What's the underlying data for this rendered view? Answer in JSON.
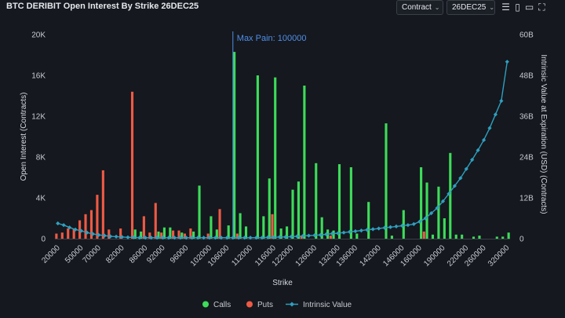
{
  "header": {
    "title": "BTC DERIBIT Open Interest By Strike 26DEC25",
    "metric_select": "Contract",
    "expiry_select": "26DEC25",
    "icons": [
      "menu-icon",
      "book-icon",
      "expand-icon"
    ]
  },
  "colors": {
    "calls": "#3ddc5a",
    "puts": "#ee5a45",
    "intrinsic": "#2f9fbf",
    "maxpain": "#4f8fe8",
    "background": "#15181e"
  },
  "chart_data": {
    "type": "bar",
    "xlabel": "Strike",
    "ylabel": "Open Interest (Contracts)",
    "y2label": "Intrinsic Value at Expiration (USD) (Contracts)",
    "ylim": [
      0,
      20000
    ],
    "y2lim": [
      0,
      60
    ],
    "yticks": [
      "0",
      "4K",
      "8K",
      "12K",
      "16K",
      "20K"
    ],
    "y2ticks": [
      "0",
      "12B",
      "24B",
      "36B",
      "48B",
      "60B"
    ],
    "xtick_labels": [
      "20000",
      "50000",
      "70000",
      "82000",
      "86000",
      "92000",
      "96000",
      "102000",
      "106000",
      "112000",
      "116000",
      "122000",
      "126000",
      "132000",
      "136000",
      "142000",
      "146000",
      "160000",
      "190000",
      "220000",
      "260000",
      "320000"
    ],
    "annotation": "Max Pain: 100000",
    "max_pain_index": 30,
    "legend": [
      "Calls",
      "Puts",
      "Intrinsic Value"
    ],
    "legend_position": "bottom",
    "grid": false,
    "series": [
      {
        "name": "Calls",
        "values": [
          0,
          0,
          0,
          0,
          0,
          0,
          0,
          0,
          0,
          0,
          0,
          0,
          0,
          900,
          700,
          0,
          0,
          700,
          1100,
          1100,
          0,
          600,
          0,
          700,
          5200,
          0,
          2200,
          900,
          0,
          1300,
          18300,
          2500,
          1200,
          0,
          16000,
          2200,
          5900,
          15800,
          1000,
          1200,
          4800,
          5600,
          15000,
          0,
          7400,
          2100,
          900,
          800,
          7300,
          0,
          7000,
          500,
          0,
          3600,
          0,
          0,
          11300,
          300,
          0,
          2800,
          0,
          0,
          7000,
          5500,
          400,
          5100,
          2000,
          8400,
          400,
          400,
          0,
          200,
          300,
          0,
          0,
          200,
          200,
          600
        ]
      },
      {
        "name": "Puts",
        "values": [
          500,
          600,
          1000,
          1000,
          1800,
          2400,
          2800,
          4300,
          6700,
          900,
          0,
          1000,
          0,
          14400,
          0,
          2200,
          600,
          3500,
          600,
          0,
          800,
          800,
          500,
          1000,
          0,
          0,
          500,
          0,
          2900,
          0,
          0,
          500,
          0,
          0,
          0,
          0,
          0,
          2400,
          0,
          0,
          0,
          0,
          300,
          0,
          0,
          0,
          0,
          300,
          0,
          0,
          0,
          0,
          0,
          0,
          0,
          0,
          0,
          0,
          0,
          0,
          0,
          0,
          0,
          700,
          0,
          0,
          0,
          0,
          0,
          0,
          0,
          0,
          0,
          0,
          0,
          0,
          0,
          0
        ]
      },
      {
        "name": "Intrinsic Value",
        "values": [
          4.5,
          4.0,
          3.3,
          2.7,
          2.3,
          1.8,
          1.4,
          1.1,
          0.9,
          0.7,
          0.6,
          0.5,
          0.4,
          0.4,
          0.3,
          0.3,
          0.3,
          0.3,
          0.3,
          0.3,
          0.3,
          0.3,
          0.3,
          0.3,
          0.3,
          0.3,
          0.3,
          0.3,
          0.3,
          0.3,
          0.3,
          0.3,
          0.3,
          0.3,
          0.3,
          0.3,
          0.4,
          0.4,
          0.5,
          0.5,
          0.6,
          0.7,
          0.8,
          0.9,
          1.0,
          1.1,
          1.3,
          1.5,
          1.6,
          1.8,
          2.0,
          2.2,
          2.4,
          2.6,
          2.8,
          3.0,
          3.2,
          3.4,
          3.6,
          3.8,
          4.0,
          4.3,
          5.0,
          6.0,
          7.5,
          9.0,
          11.0,
          13.2,
          15.5,
          17.8,
          20.5,
          23.2,
          26.0,
          29.0,
          32.5,
          36.5,
          40.5,
          52.0
        ]
      }
    ]
  }
}
